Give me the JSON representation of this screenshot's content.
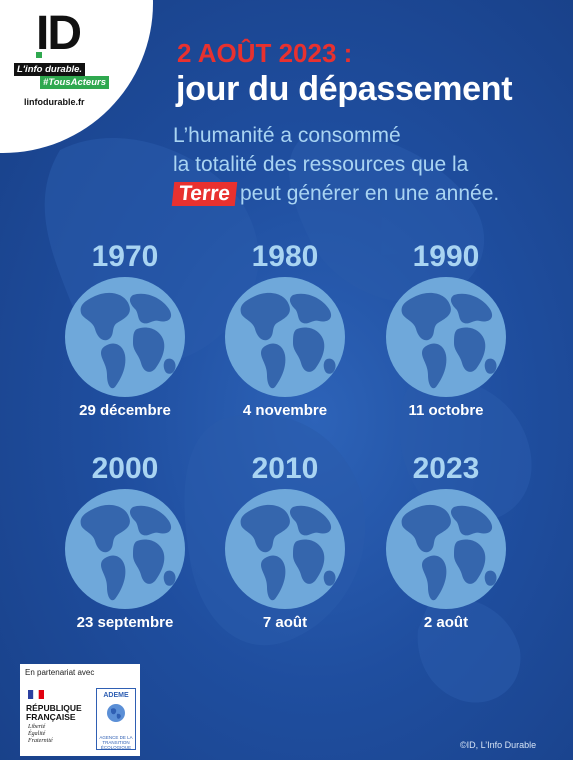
{
  "logo": {
    "mark": "ID",
    "tagline": "L'info durable.",
    "hashtag": "#TousActeurs",
    "url": "linfodurable.fr"
  },
  "header": {
    "date_line": "2 AOÛT 2023 :",
    "title": "jour du dépassement"
  },
  "subtitle": {
    "line1": "L’humanité a consommé",
    "line2": "la totalité des ressources que la",
    "highlight": "Terre",
    "line3_rest": "peut générer en une année."
  },
  "timeline": [
    {
      "year": "1970",
      "date": "29 décembre"
    },
    {
      "year": "1980",
      "date": "4 novembre"
    },
    {
      "year": "1990",
      "date": "11 octobre"
    },
    {
      "year": "2000",
      "date": "23 septembre"
    },
    {
      "year": "2010",
      "date": "7 août"
    },
    {
      "year": "2023",
      "date": "2 août"
    }
  ],
  "partner": {
    "label": "En partenariat avec",
    "rf_name": "RÉPUBLIQUE FRANÇAISE",
    "rf_motto": [
      "Liberté",
      "Égalité",
      "Fraternité"
    ],
    "ademe_name": "ADEME",
    "ademe_sub": "AGENCE DE LA TRANSITION ÉCOLOGIQUE"
  },
  "credit": "©ID, L’Info Durable",
  "colors": {
    "background": "#1f4e9f",
    "accent_red": "#e8312f",
    "light_blue_text": "#a9d4f2",
    "globe_ocean": "#6fa8da",
    "globe_land": "#3566ad"
  },
  "icons": [
    "globe-icon",
    "french-flag-icon",
    "ademe-globe-icon"
  ]
}
